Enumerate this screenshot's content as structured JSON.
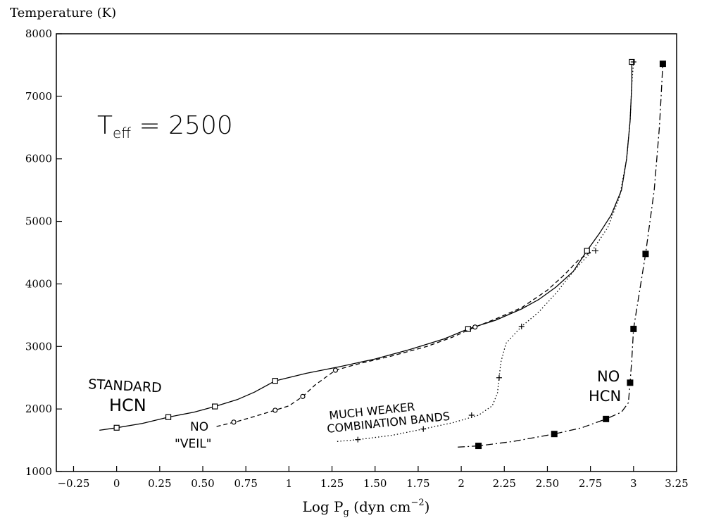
{
  "chart_data": {
    "type": "line",
    "ylabel": "Temperature (K)",
    "xlabel_main": "Log P",
    "xlabel_sub": "g",
    "xlabel_units": " (dyn cm",
    "xlabel_sup": "−2",
    "xlabel_close": ")",
    "xlim": [
      -0.35,
      3.25
    ],
    "ylim": [
      1000,
      8000
    ],
    "x_ticks": [
      -0.25,
      0,
      0.25,
      0.5,
      0.75,
      1,
      1.25,
      1.5,
      1.75,
      2,
      2.25,
      2.5,
      2.75,
      3,
      3.25
    ],
    "x_tick_labels": [
      "−0.25",
      "0",
      "0.25",
      "0.50",
      "0.75",
      "1",
      "1.25",
      "1.50",
      "1.75",
      "2",
      "2.25",
      "2.50",
      "2.75",
      "3",
      "3.25"
    ],
    "y_ticks": [
      1000,
      2000,
      3000,
      4000,
      5000,
      6000,
      7000,
      8000
    ],
    "y_tick_labels": [
      "1000",
      "2000",
      "3000",
      "4000",
      "5000",
      "6000",
      "7000",
      "8000"
    ],
    "grid": false,
    "annotation_teff": "T",
    "annotation_teff_sub": "eff",
    "annotation_teff_value": " = 2500",
    "series": [
      {
        "id": "standard",
        "label_lines": [
          "STANDARD",
          "HCN"
        ],
        "style": "solid",
        "marker": "open-square",
        "curve": [
          [
            -0.1,
            1660
          ],
          [
            0,
            1700
          ],
          [
            0.15,
            1770
          ],
          [
            0.3,
            1870
          ],
          [
            0.45,
            1950
          ],
          [
            0.57,
            2040
          ],
          [
            0.7,
            2150
          ],
          [
            0.8,
            2270
          ],
          [
            0.92,
            2450
          ],
          [
            1.1,
            2570
          ],
          [
            1.3,
            2680
          ],
          [
            1.5,
            2800
          ],
          [
            1.7,
            2950
          ],
          [
            1.9,
            3120
          ],
          [
            2.04,
            3280
          ],
          [
            2.2,
            3420
          ],
          [
            2.35,
            3600
          ],
          [
            2.45,
            3750
          ],
          [
            2.55,
            3950
          ],
          [
            2.65,
            4200
          ],
          [
            2.73,
            4530
          ],
          [
            2.8,
            4800
          ],
          [
            2.87,
            5100
          ],
          [
            2.93,
            5500
          ],
          [
            2.96,
            6000
          ],
          [
            2.98,
            6600
          ],
          [
            2.99,
            7200
          ],
          [
            2.99,
            7550
          ]
        ],
        "markers": [
          [
            0,
            1700
          ],
          [
            0.3,
            1870
          ],
          [
            0.57,
            2040
          ],
          [
            0.92,
            2450
          ],
          [
            2.04,
            3280
          ],
          [
            2.73,
            4530
          ],
          [
            2.99,
            7550
          ]
        ]
      },
      {
        "id": "noveil",
        "label_lines": [
          "NO",
          "\"VEIL\""
        ],
        "style": "dashed",
        "marker": "open-circle",
        "curve": [
          [
            0.58,
            1720
          ],
          [
            0.7,
            1800
          ],
          [
            0.8,
            1880
          ],
          [
            0.92,
            1980
          ],
          [
            1.0,
            2050
          ],
          [
            1.08,
            2200
          ],
          [
            1.15,
            2380
          ],
          [
            1.22,
            2520
          ],
          [
            1.27,
            2620
          ],
          [
            1.4,
            2720
          ],
          [
            1.6,
            2850
          ],
          [
            1.8,
            3000
          ],
          [
            1.95,
            3150
          ],
          [
            2.08,
            3310
          ],
          [
            2.2,
            3440
          ],
          [
            2.35,
            3620
          ],
          [
            2.5,
            3900
          ],
          [
            2.6,
            4150
          ],
          [
            2.68,
            4380
          ],
          [
            2.76,
            4530
          ]
        ],
        "markers": [
          [
            0.68,
            1790
          ],
          [
            0.92,
            1980
          ],
          [
            1.08,
            2200
          ],
          [
            1.27,
            2620
          ],
          [
            2.08,
            3310
          ]
        ]
      },
      {
        "id": "weaker",
        "label_lines": [
          "MUCH WEAKER",
          "COMBINATION BANDS"
        ],
        "style": "dotted",
        "marker": "plus",
        "curve": [
          [
            1.28,
            1480
          ],
          [
            1.4,
            1510
          ],
          [
            1.6,
            1580
          ],
          [
            1.78,
            1680
          ],
          [
            1.95,
            1780
          ],
          [
            2.1,
            1900
          ],
          [
            2.18,
            2050
          ],
          [
            2.21,
            2250
          ],
          [
            2.22,
            2500
          ],
          [
            2.23,
            2750
          ],
          [
            2.26,
            3050
          ],
          [
            2.35,
            3320
          ],
          [
            2.45,
            3550
          ],
          [
            2.55,
            3850
          ],
          [
            2.65,
            4200
          ],
          [
            2.76,
            4530
          ],
          [
            2.85,
            4900
          ],
          [
            2.92,
            5400
          ],
          [
            2.96,
            6000
          ],
          [
            2.98,
            6600
          ],
          [
            2.99,
            7200
          ],
          [
            3.0,
            7550
          ]
        ],
        "markers": [
          [
            1.4,
            1510
          ],
          [
            1.78,
            1680
          ],
          [
            2.06,
            1900
          ],
          [
            2.22,
            2500
          ],
          [
            2.35,
            3320
          ],
          [
            2.78,
            4530
          ],
          [
            3.0,
            7550
          ]
        ]
      },
      {
        "id": "nohcn",
        "label_lines": [
          "NO",
          "HCN"
        ],
        "style": "dashdot",
        "marker": "filled-square",
        "curve": [
          [
            1.98,
            1390
          ],
          [
            2.1,
            1410
          ],
          [
            2.3,
            1480
          ],
          [
            2.54,
            1600
          ],
          [
            2.7,
            1700
          ],
          [
            2.84,
            1840
          ],
          [
            2.93,
            1950
          ],
          [
            2.97,
            2100
          ],
          [
            2.98,
            2420
          ],
          [
            2.99,
            2800
          ],
          [
            3.0,
            3280
          ],
          [
            3.03,
            3800
          ],
          [
            3.07,
            4480
          ],
          [
            3.12,
            5500
          ],
          [
            3.15,
            6500
          ],
          [
            3.16,
            7000
          ],
          [
            3.17,
            7520
          ]
        ],
        "markers": [
          [
            2.1,
            1410
          ],
          [
            2.54,
            1600
          ],
          [
            2.84,
            1840
          ],
          [
            2.98,
            2420
          ],
          [
            3.0,
            3280
          ],
          [
            3.07,
            4480
          ],
          [
            3.17,
            7520
          ]
        ]
      }
    ]
  }
}
